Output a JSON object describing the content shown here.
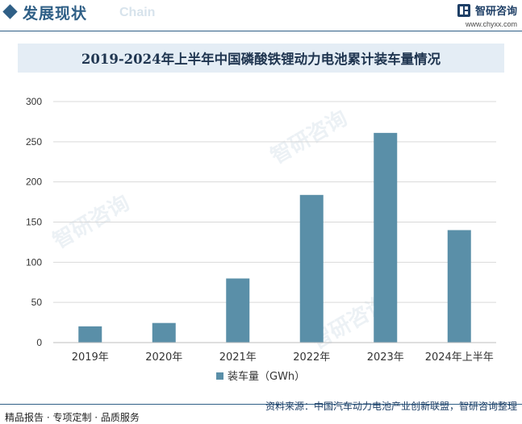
{
  "header": {
    "section_title": "发展现状",
    "section_sub": "Chain",
    "brand_name": "智研咨询",
    "brand_url": "www.chyxx.com"
  },
  "footer": {
    "left_text": "精品报告 · 专项定制 · 品质服务",
    "source_text": "资料来源：中国汽车动力电池产业创新联盟，智研咨询整理"
  },
  "watermark": {
    "text": "智研咨询"
  },
  "colors": {
    "bar": "#5a8fa8",
    "accent": "#2f5f86",
    "title_bg": "#e4edf5"
  },
  "chart_data": {
    "type": "bar",
    "title": "2019-2024年上半年中国磷酸铁锂动力电池累计装车量情况",
    "categories": [
      "2019年",
      "2020年",
      "2021年",
      "2022年",
      "2023年",
      "2024年上半年"
    ],
    "series": [
      {
        "name": "装车量（GWh）",
        "values": [
          20.2,
          24.4,
          79.8,
          183.8,
          261.0,
          140.0
        ]
      }
    ],
    "ylim": [
      0,
      300
    ],
    "yticks": [
      0,
      50,
      100,
      150,
      200,
      250,
      300
    ],
    "grid": true,
    "legend": "bottom"
  }
}
